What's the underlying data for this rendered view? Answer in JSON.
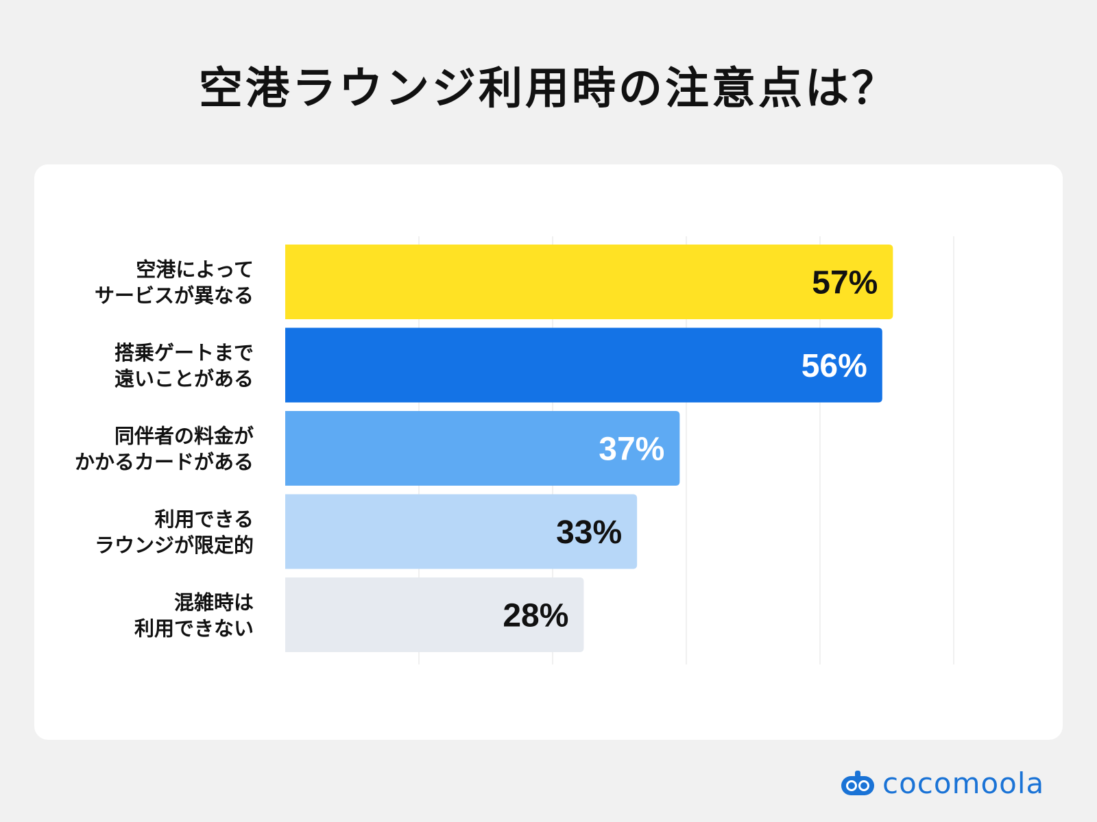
{
  "title": "空港ラウンジ利用時の注意点は？",
  "brand": "cocomoola",
  "colors": {
    "background": "#f1f1f1",
    "card": "#ffffff",
    "grid": "#ececec",
    "brand": "#1a73d6"
  },
  "chart_data": {
    "type": "bar",
    "orientation": "horizontal",
    "title": "空港ラウンジ利用時の注意点は？",
    "xlim": [
      0,
      100
    ],
    "grid": true,
    "categories": [
      [
        "空港によって",
        "サービスが異なる"
      ],
      [
        "搭乗ゲートまで",
        "遠いことがある"
      ],
      [
        "同伴者の料金が",
        "かかるカードがある"
      ],
      [
        "利用できる",
        "ラウンジが限定的"
      ],
      [
        "混雑時は",
        "利用できない"
      ]
    ],
    "values": [
      57,
      56,
      37,
      33,
      28
    ],
    "value_labels": [
      "57%",
      "56%",
      "37%",
      "33%",
      "28%"
    ],
    "bar_colors": [
      "#ffe224",
      "#1473e6",
      "#5eaaf3",
      "#b7d7f8",
      "#e6eaf0"
    ],
    "label_colors": [
      "#111111",
      "#ffffff",
      "#ffffff",
      "#111111",
      "#111111"
    ]
  }
}
